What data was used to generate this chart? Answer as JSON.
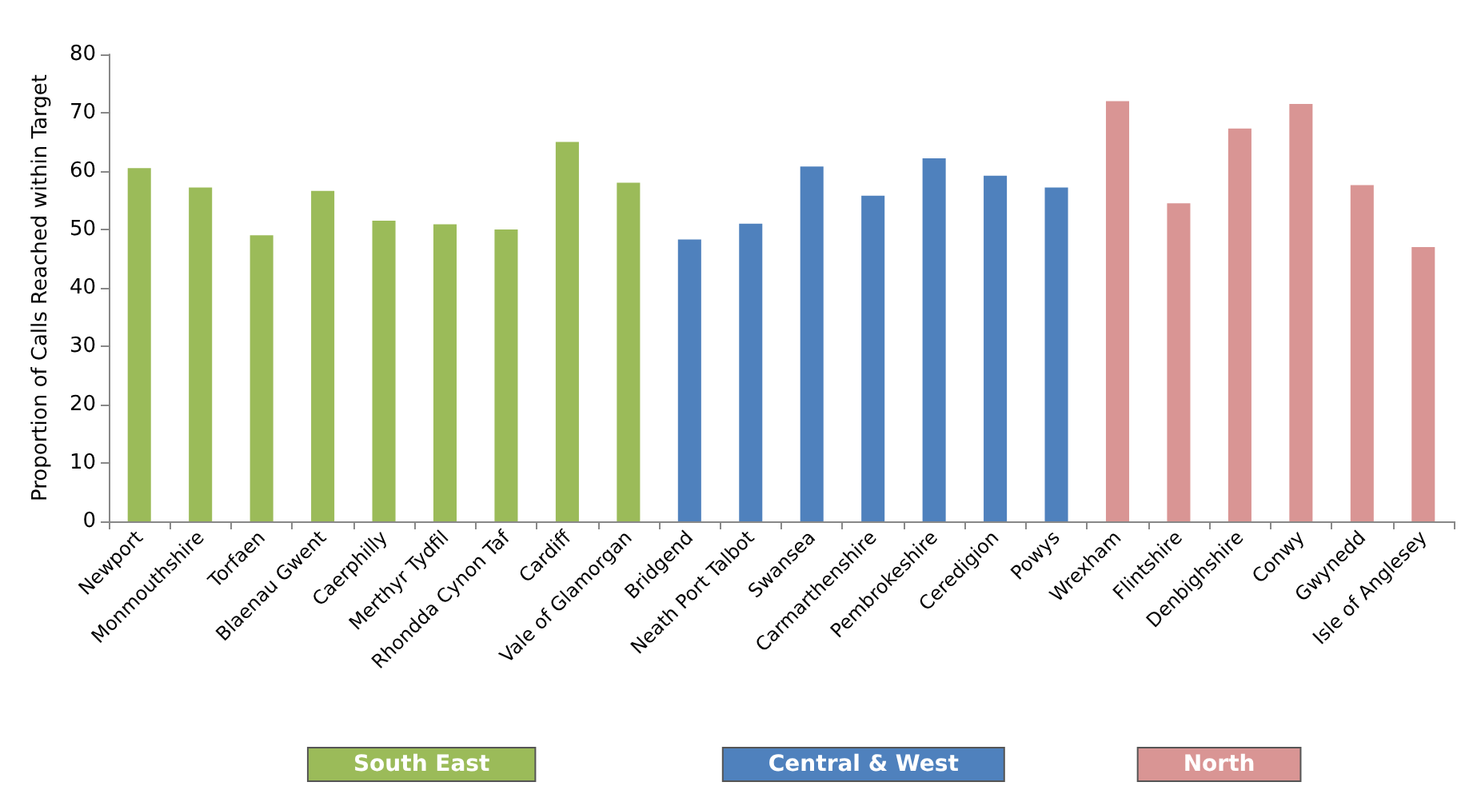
{
  "chart_data": {
    "type": "bar",
    "ylabel": "Proportion of Calls Reached within Target",
    "categories": [
      "Newport",
      "Monmouthshire",
      "Torfaen",
      "Blaenau Gwent",
      "Caerphilly",
      "Merthyr Tydfil",
      "Rhondda Cynon Taf",
      "Cardiff",
      "Vale of Glamorgan",
      "Bridgend",
      "Neath Port Talbot",
      "Swansea",
      "Carmarthenshire",
      "Pembrokeshire",
      "Ceredigion",
      "Powys",
      "Wrexham",
      "Flintshire",
      "Denbighshire",
      "Conwy",
      "Gwynedd",
      "Isle of Anglesey"
    ],
    "series": [
      {
        "name": "South East",
        "color": "#9bbb59",
        "values": [
          60.5,
          57.2,
          49,
          56.6,
          51.5,
          50.9,
          50,
          65,
          58,
          null,
          null,
          null,
          null,
          null,
          null,
          null,
          null,
          null,
          null,
          null,
          null,
          null
        ]
      },
      {
        "name": "Central & West",
        "color": "#4f81bd",
        "values": [
          null,
          null,
          null,
          null,
          null,
          null,
          null,
          null,
          null,
          48.3,
          51,
          60.8,
          55.8,
          62.2,
          59.2,
          57.2,
          null,
          null,
          null,
          null,
          null,
          null
        ]
      },
      {
        "name": "North",
        "color": "#d99594",
        "values": [
          null,
          null,
          null,
          null,
          null,
          null,
          null,
          null,
          null,
          null,
          null,
          null,
          null,
          null,
          null,
          null,
          72,
          54.5,
          67.3,
          71.5,
          57.6,
          47
        ]
      }
    ],
    "ylim": [
      0,
      80
    ],
    "yticks": [
      0,
      10,
      20,
      30,
      40,
      50,
      60,
      70,
      80
    ],
    "grid": false,
    "legend": "bottom"
  }
}
